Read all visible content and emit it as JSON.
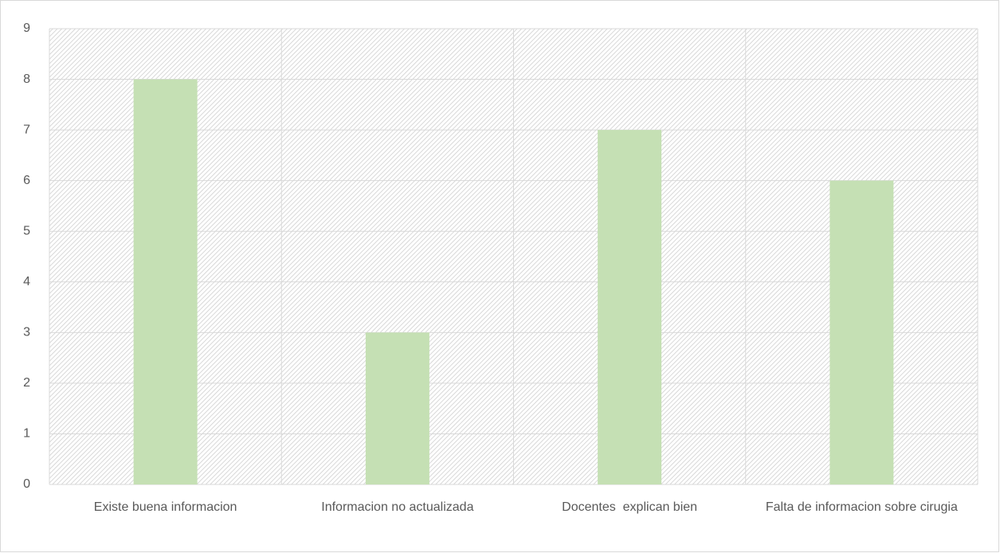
{
  "chart_data": {
    "type": "bar",
    "categories": [
      "Existe buena informacion",
      "Informacion no actualizada",
      "Docentes  explican bien",
      "Falta de informacion sobre cirugia"
    ],
    "values": [
      8,
      3,
      7,
      6
    ],
    "color": "#c5e0b4",
    "ylim": [
      0,
      9
    ],
    "yticks": [
      0,
      1,
      2,
      3,
      4,
      5,
      6,
      7,
      8,
      9
    ],
    "grid": true
  }
}
